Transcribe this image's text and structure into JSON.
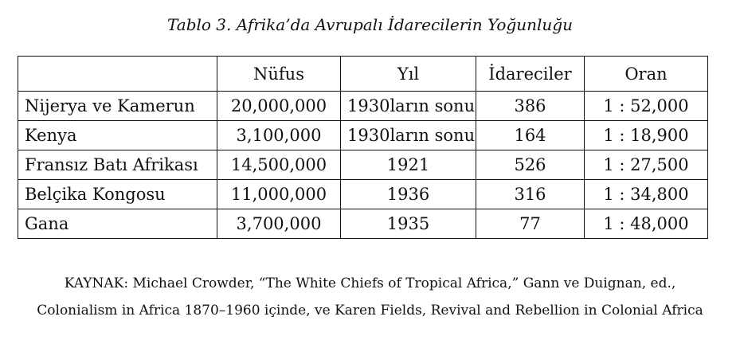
{
  "table_title": "Tablo 3. Afrika’da Avrupalı İdarecilerin Yoğunluğu",
  "table": {
    "headers": [
      "",
      "Nüfus",
      "Yıl",
      "İdareciler",
      "Oran"
    ],
    "rows": [
      [
        "Nijerya ve Kamerun",
        "20,000,000",
        "1930ların sonu",
        "386",
        "1 : 52,000"
      ],
      [
        "Kenya",
        "3,100,000",
        "1930ların sonu",
        "164",
        "1 : 18,900"
      ],
      [
        "Fransız Batı Afrikası",
        "14,500,000",
        "1921",
        "526",
        "1 : 27,500"
      ],
      [
        "Belçika Kongosu",
        "11,000,000",
        "1936",
        "316",
        "1 : 34,800"
      ],
      [
        "Gana",
        "3,700,000",
        "1935",
        "77",
        "1 : 48,000"
      ]
    ]
  },
  "source": {
    "line1": "KAYNAK: Michael Crowder, “The White Chiefs of Tropical Africa,” Gann ve Duignan, ed.,",
    "line2": "Colonialism in Africa 1870–1960 içinde, ve Karen Fields, Revival and Rebellion in Colonial Africa"
  }
}
